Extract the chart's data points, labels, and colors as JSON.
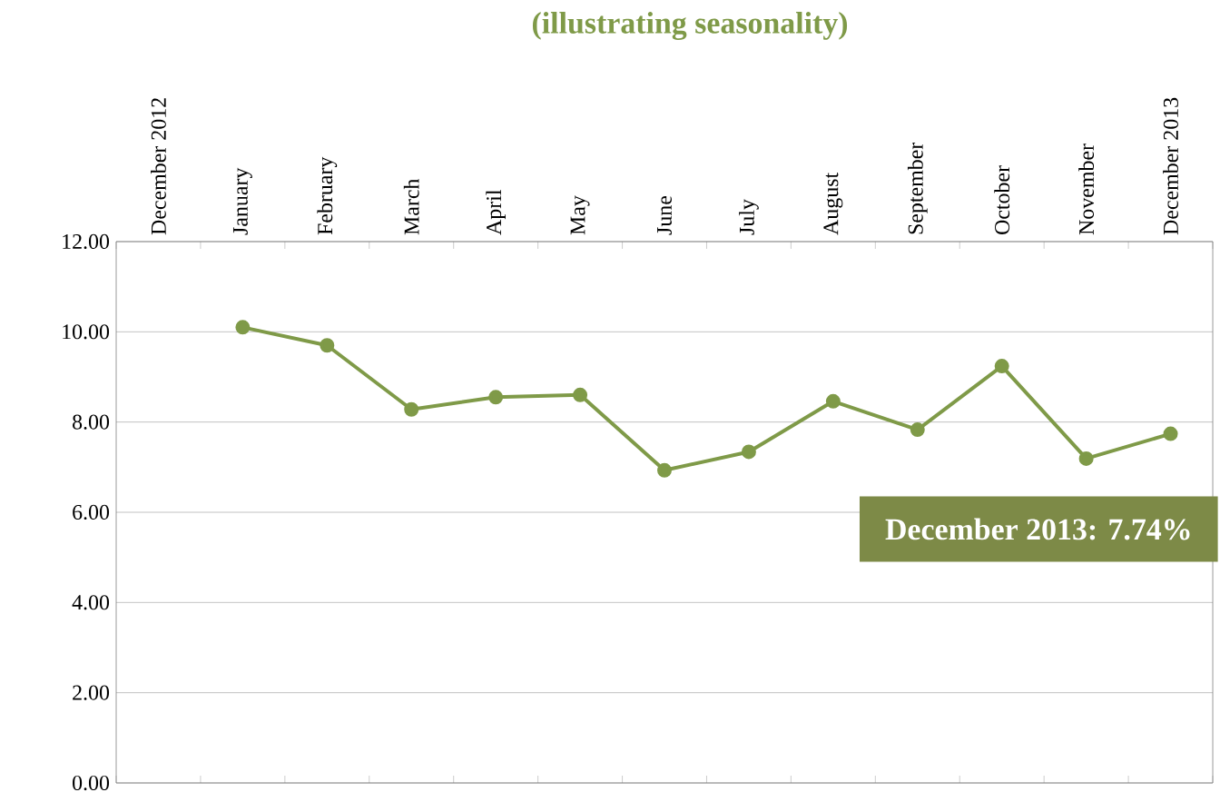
{
  "chart_data": {
    "type": "line",
    "title": "(illustrating seasonality)",
    "categories": [
      "December 2012",
      "January",
      "February",
      "March",
      "April",
      "May",
      "June",
      "July",
      "August",
      "September",
      "October",
      "November",
      "December 2013"
    ],
    "series": [
      {
        "color": "#7f9a48",
        "values": [
          null,
          10.1,
          9.7,
          8.28,
          8.55,
          8.6,
          6.93,
          7.34,
          8.46,
          7.83,
          9.24,
          7.19,
          7.74
        ]
      }
    ],
    "ylim": [
      0,
      12
    ],
    "yticks": [
      {
        "value": 0,
        "label": "0.00"
      },
      {
        "value": 2,
        "label": "2.00"
      },
      {
        "value": 4,
        "label": "4.00"
      },
      {
        "value": 6,
        "label": "6.00"
      },
      {
        "value": 8,
        "label": "8.00"
      },
      {
        "value": 10,
        "label": "10.00"
      },
      {
        "value": 12,
        "label": "12.00"
      }
    ],
    "grid": "y",
    "marker": "circle",
    "line_style": "solid",
    "annotations": [
      "December 2013: 7.74%"
    ]
  }
}
